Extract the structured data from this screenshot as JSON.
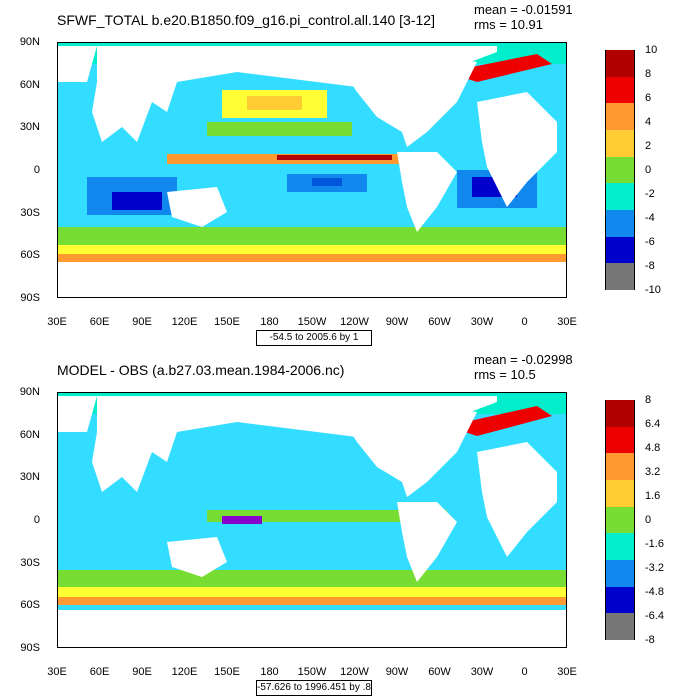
{
  "panels": [
    {
      "title": "SFWF_TOTAL b.e20.B1850.f09_g16.pi_control.all.140 [3-12]",
      "mean": "mean = -0.01591",
      "rms": "rms = 10.91",
      "range": "-54.5 to 2005.6 by 1",
      "colorbar_labels": [
        "10",
        "8",
        "6",
        "4",
        "2",
        "0",
        "-2",
        "-4",
        "-6",
        "-8",
        "-10"
      ]
    },
    {
      "title": "MODEL - OBS (a.b27.03.mean.1984-2006.nc)",
      "mean": "mean = -0.02998",
      "rms": "rms = 10.5",
      "range": "-57.626 to 1996.451 by .8",
      "colorbar_labels": [
        "8",
        "6.4",
        "4.8",
        "3.2",
        "1.6",
        "0",
        "-1.6",
        "-3.2",
        "-4.8",
        "-6.4",
        "-8"
      ]
    }
  ],
  "lat_labels": [
    "90N",
    "60N",
    "30N",
    "0",
    "30S",
    "60S",
    "90S"
  ],
  "lon_labels": [
    "30E",
    "60E",
    "90E",
    "120E",
    "150E",
    "180",
    "150W",
    "120W",
    "90W",
    "60W",
    "30W",
    "0",
    "30E"
  ],
  "colors": {
    "land": "#ffffff",
    "colorbar": [
      "#b00000",
      "#ee0000",
      "#ff5500",
      "#ff9930",
      "#ffcc33",
      "#ffff33",
      "#77dd33",
      "#00cc33",
      "#00eecc",
      "#33ddff",
      "#33aaff",
      "#1188ee",
      "#0055dd",
      "#0000cc",
      "#8800cc",
      "#ee00ee",
      "#cccccc",
      "#777777"
    ]
  }
}
